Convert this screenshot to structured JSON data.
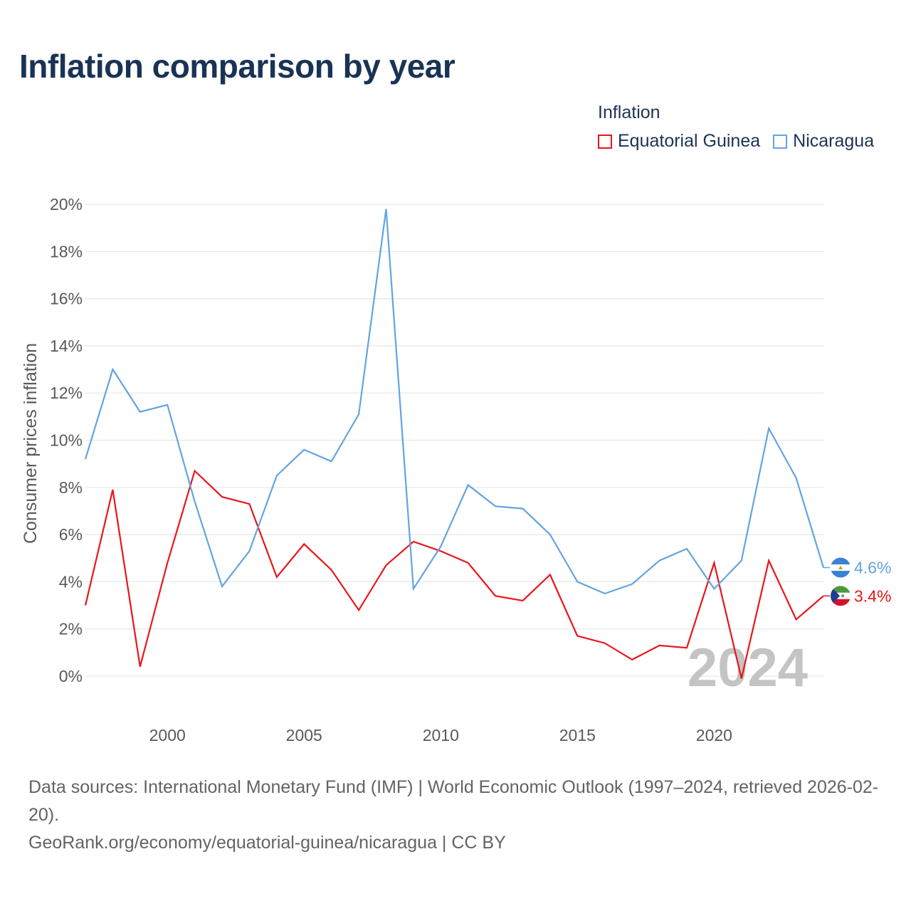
{
  "title": "Inflation comparison by year",
  "legend": {
    "title": "Inflation",
    "items": [
      {
        "label": "Equatorial Guinea",
        "color": "#e8161b"
      },
      {
        "label": "Nicaragua",
        "color": "#63a4e0"
      }
    ]
  },
  "footer": {
    "sources": "Data sources: International Monetary Fund (IMF) | World Economic Outlook (1997–2024, retrieved 2026-02-20).",
    "credit": "GeoRank.org/economy/equatorial-guinea/nicaragua | CC BY"
  },
  "chart_data": {
    "type": "line",
    "ylabel": "Consumer prices inflation",
    "xlabel": "",
    "xlim": [
      1997,
      2024
    ],
    "ylim": [
      -1.5,
      20
    ],
    "yticks": [
      0,
      2,
      4,
      6,
      8,
      10,
      12,
      14,
      16,
      18,
      20
    ],
    "ytick_labels": [
      "0%",
      "2%",
      "4%",
      "6%",
      "8%",
      "10%",
      "12%",
      "14%",
      "16%",
      "18%",
      "20%"
    ],
    "xticks": [
      2000,
      2005,
      2010,
      2015,
      2020
    ],
    "xtick_labels": [
      "2000",
      "2005",
      "2010",
      "2015",
      "2020"
    ],
    "year_watermark": "2024",
    "x": [
      1997,
      1998,
      1999,
      2000,
      2001,
      2002,
      2003,
      2004,
      2005,
      2006,
      2007,
      2008,
      2009,
      2010,
      2011,
      2012,
      2013,
      2014,
      2015,
      2016,
      2017,
      2018,
      2019,
      2020,
      2021,
      2022,
      2023,
      2024
    ],
    "series": [
      {
        "name": "Equatorial Guinea",
        "color": "#e8161b",
        "values": [
          3.0,
          7.9,
          0.4,
          4.8,
          8.7,
          7.6,
          7.3,
          4.2,
          5.6,
          4.5,
          2.8,
          4.7,
          5.7,
          5.3,
          4.8,
          3.4,
          3.2,
          4.3,
          1.7,
          1.4,
          0.7,
          1.3,
          1.2,
          4.8,
          -0.1,
          4.9,
          2.4,
          3.4
        ],
        "end_label": "3.4%"
      },
      {
        "name": "Nicaragua",
        "color": "#63a4e0",
        "values": [
          9.2,
          13.0,
          11.2,
          11.5,
          7.4,
          3.8,
          5.3,
          8.5,
          9.6,
          9.1,
          11.1,
          19.8,
          3.7,
          5.5,
          8.1,
          7.2,
          7.1,
          6.0,
          4.0,
          3.5,
          3.9,
          4.9,
          5.4,
          3.7,
          4.9,
          10.5,
          8.4,
          4.6
        ],
        "end_label": "4.6%"
      }
    ]
  }
}
